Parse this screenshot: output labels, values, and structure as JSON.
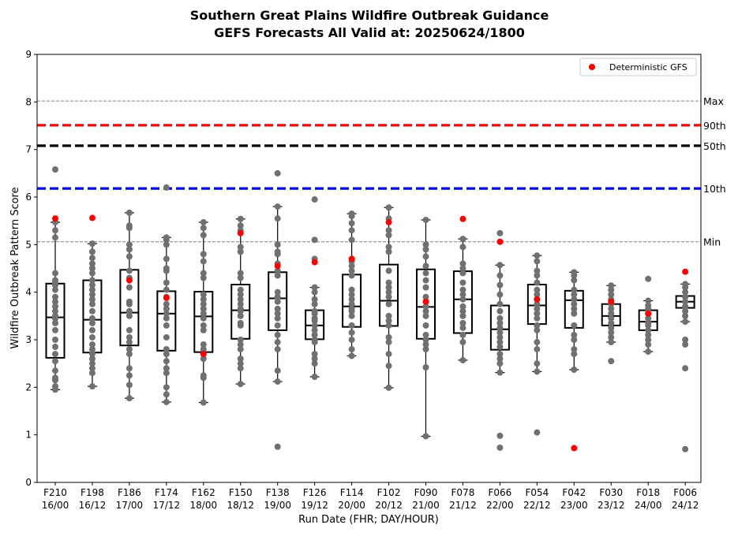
{
  "chart_data": {
    "type": "box",
    "title": "Southern Great Plains Wildfire Outbreak Guidance",
    "subtitle": "GEFS Forecasts All Valid at: 20250624/1800",
    "xlabel": "Run Date (FHR; DAY/HOUR)",
    "ylabel": "Wildfire Outbreak Pattern Score",
    "ylim": [
      0,
      9
    ],
    "yticks": [
      "0",
      "1",
      "2",
      "3",
      "4",
      "5",
      "6",
      "7",
      "8",
      "9"
    ],
    "grid": false,
    "legend": {
      "position": "top-right",
      "label": "Deterministic GFS",
      "color": "#ff0000"
    },
    "reference_lines": [
      {
        "label": "Max",
        "value": 8.02,
        "color": "#808080",
        "style": "dashed-thin"
      },
      {
        "label": "90th",
        "value": 7.51,
        "color": "#ff0000",
        "style": "dashed-thick"
      },
      {
        "label": "50th",
        "value": 7.08,
        "color": "#000000",
        "style": "dashed-thick"
      },
      {
        "label": "10th",
        "value": 6.18,
        "color": "#0000ff",
        "style": "dashed-thick"
      },
      {
        "label": "Min",
        "value": 5.06,
        "color": "#808080",
        "style": "dashed-thin"
      }
    ],
    "colors": {
      "members": "#707070",
      "deterministic": "#ff0000",
      "box": "#000000"
    },
    "categories": [
      {
        "fhr": "F210",
        "dayhour": "16/00",
        "q1": 2.62,
        "median": 3.47,
        "q3": 4.18,
        "whisker_low": 1.95,
        "whisker_high": 5.47,
        "det": 5.55,
        "members": [
          1.95,
          2.02,
          2.15,
          2.2,
          2.35,
          2.55,
          2.7,
          2.85,
          3.0,
          3.2,
          3.35,
          3.45,
          3.5,
          3.6,
          3.7,
          3.8,
          3.9,
          4.05,
          4.15,
          4.2,
          4.25,
          4.4,
          5.15,
          5.3,
          5.47,
          6.58
        ]
      },
      {
        "fhr": "F198",
        "dayhour": "16/12",
        "q1": 2.73,
        "median": 3.42,
        "q3": 4.25,
        "whisker_low": 2.02,
        "whisker_high": 5.02,
        "det": 5.56,
        "members": [
          2.02,
          2.3,
          2.4,
          2.5,
          2.6,
          2.7,
          2.8,
          2.9,
          3.05,
          3.2,
          3.35,
          3.45,
          3.6,
          3.75,
          3.85,
          3.95,
          4.05,
          4.15,
          4.25,
          4.4,
          4.5,
          4.6,
          4.72,
          4.85,
          5.02
        ]
      },
      {
        "fhr": "F186",
        "dayhour": "17/00",
        "q1": 2.88,
        "median": 3.57,
        "q3": 4.47,
        "whisker_low": 1.77,
        "whisker_high": 5.67,
        "det": 4.25,
        "members": [
          1.77,
          2.05,
          2.25,
          2.4,
          2.7,
          2.8,
          2.95,
          3.05,
          3.2,
          3.5,
          3.6,
          3.75,
          3.8,
          4.1,
          4.3,
          4.45,
          4.75,
          4.9,
          5.0,
          5.35,
          5.4,
          5.67
        ]
      },
      {
        "fhr": "F174",
        "dayhour": "17/12",
        "q1": 2.77,
        "median": 3.55,
        "q3": 4.02,
        "whisker_low": 1.69,
        "whisker_high": 5.15,
        "det": 3.88,
        "members": [
          1.69,
          1.85,
          2.0,
          2.3,
          2.4,
          2.55,
          2.7,
          2.8,
          3.05,
          3.3,
          3.45,
          3.55,
          3.65,
          3.75,
          3.9,
          4.05,
          4.2,
          4.45,
          4.5,
          4.7,
          5.0,
          5.1,
          5.15,
          6.2
        ]
      },
      {
        "fhr": "F162",
        "dayhour": "18/00",
        "q1": 2.74,
        "median": 3.49,
        "q3": 4.01,
        "whisker_low": 1.68,
        "whisker_high": 5.47,
        "det": 2.7,
        "members": [
          1.68,
          2.2,
          2.25,
          2.6,
          2.8,
          2.9,
          3.2,
          3.3,
          3.45,
          3.55,
          3.65,
          3.75,
          3.85,
          3.95,
          4.3,
          4.4,
          4.65,
          4.8,
          5.2,
          5.35,
          5.47
        ]
      },
      {
        "fhr": "F150",
        "dayhour": "18/12",
        "q1": 3.02,
        "median": 3.62,
        "q3": 4.16,
        "whisker_low": 2.07,
        "whisker_high": 5.54,
        "det": 5.24,
        "members": [
          2.07,
          2.4,
          2.5,
          2.6,
          2.8,
          2.9,
          3.0,
          3.3,
          3.35,
          3.5,
          3.6,
          3.65,
          3.75,
          3.85,
          3.95,
          4.05,
          4.3,
          4.4,
          4.85,
          4.95,
          5.3,
          5.4,
          5.54
        ]
      },
      {
        "fhr": "F138",
        "dayhour": "19/00",
        "q1": 3.2,
        "median": 3.87,
        "q3": 4.42,
        "whisker_low": 2.12,
        "whisker_high": 5.8,
        "det": 4.55,
        "members": [
          0.75,
          2.12,
          2.35,
          2.8,
          2.95,
          3.1,
          3.3,
          3.45,
          3.55,
          3.65,
          3.8,
          3.9,
          4.0,
          4.35,
          4.45,
          4.6,
          4.8,
          4.85,
          5.0,
          5.55,
          5.8,
          6.5
        ]
      },
      {
        "fhr": "F126",
        "dayhour": "19/12",
        "q1": 3.01,
        "median": 3.3,
        "q3": 3.62,
        "whisker_low": 2.22,
        "whisker_high": 4.1,
        "det": 4.63,
        "members": [
          2.22,
          2.5,
          2.6,
          2.7,
          2.95,
          3.0,
          3.1,
          3.2,
          3.3,
          3.4,
          3.45,
          3.55,
          3.6,
          3.75,
          3.85,
          4.0,
          4.1,
          4.7,
          5.1,
          5.95
        ]
      },
      {
        "fhr": "F114",
        "dayhour": "20/00",
        "q1": 3.27,
        "median": 3.7,
        "q3": 4.37,
        "whisker_low": 2.66,
        "whisker_high": 5.65,
        "det": 4.7,
        "members": [
          2.66,
          2.8,
          3.0,
          3.15,
          3.3,
          3.5,
          3.6,
          3.65,
          3.75,
          3.85,
          3.95,
          4.05,
          4.35,
          4.45,
          4.55,
          4.65,
          5.1,
          5.3,
          5.45,
          5.6,
          5.65
        ]
      },
      {
        "fhr": "F102",
        "dayhour": "20/12",
        "q1": 3.29,
        "median": 3.82,
        "q3": 4.58,
        "whisker_low": 1.99,
        "whisker_high": 5.78,
        "det": 5.47,
        "members": [
          1.99,
          2.45,
          2.7,
          2.95,
          3.05,
          3.3,
          3.4,
          3.5,
          3.75,
          3.9,
          4.0,
          4.1,
          4.2,
          4.45,
          4.85,
          4.95,
          5.2,
          5.3,
          5.55,
          5.78
        ]
      },
      {
        "fhr": "F090",
        "dayhour": "21/00",
        "q1": 3.02,
        "median": 3.69,
        "q3": 4.48,
        "whisker_low": 0.97,
        "whisker_high": 5.52,
        "det": 3.8,
        "members": [
          0.97,
          2.42,
          2.8,
          2.9,
          3.0,
          3.1,
          3.3,
          3.5,
          3.6,
          3.7,
          3.9,
          4.1,
          4.25,
          4.4,
          4.55,
          4.75,
          4.9,
          5.0,
          5.52
        ]
      },
      {
        "fhr": "F078",
        "dayhour": "21/12",
        "q1": 3.14,
        "median": 3.85,
        "q3": 4.44,
        "whisker_low": 2.57,
        "whisker_high": 5.12,
        "det": 5.54,
        "members": [
          2.57,
          2.95,
          3.1,
          3.25,
          3.35,
          3.5,
          3.6,
          3.7,
          3.85,
          3.95,
          4.05,
          4.2,
          4.4,
          4.5,
          4.6,
          4.95,
          5.12
        ]
      },
      {
        "fhr": "F066",
        "dayhour": "22/00",
        "q1": 2.79,
        "median": 3.22,
        "q3": 3.72,
        "whisker_low": 2.31,
        "whisker_high": 4.57,
        "det": 5.06,
        "members": [
          0.73,
          0.98,
          2.31,
          2.5,
          2.6,
          2.7,
          2.85,
          2.95,
          3.05,
          3.15,
          3.25,
          3.35,
          3.45,
          3.6,
          3.75,
          3.95,
          4.15,
          4.35,
          4.57,
          5.24
        ]
      },
      {
        "fhr": "F054",
        "dayhour": "22/12",
        "q1": 3.33,
        "median": 3.72,
        "q3": 4.16,
        "whisker_low": 2.33,
        "whisker_high": 4.77,
        "det": 3.85,
        "members": [
          1.05,
          2.33,
          2.5,
          2.8,
          2.95,
          3.2,
          3.3,
          3.45,
          3.55,
          3.65,
          3.75,
          3.85,
          3.95,
          4.05,
          4.2,
          4.35,
          4.45,
          4.65,
          4.77
        ]
      },
      {
        "fhr": "F042",
        "dayhour": "23/00",
        "q1": 3.25,
        "median": 3.83,
        "q3": 4.03,
        "whisker_low": 2.37,
        "whisker_high": 4.42,
        "det": 0.72,
        "members": [
          2.37,
          2.7,
          2.8,
          3.0,
          3.1,
          3.3,
          3.55,
          3.65,
          3.75,
          3.85,
          3.95,
          4.05,
          4.25,
          4.35,
          4.42
        ]
      },
      {
        "fhr": "F030",
        "dayhour": "23/12",
        "q1": 3.3,
        "median": 3.5,
        "q3": 3.75,
        "whisker_low": 2.95,
        "whisker_high": 4.14,
        "det": 3.8,
        "members": [
          2.55,
          2.95,
          3.05,
          3.15,
          3.25,
          3.35,
          3.45,
          3.55,
          3.65,
          3.75,
          3.85,
          3.95,
          4.05,
          4.14
        ]
      },
      {
        "fhr": "F018",
        "dayhour": "24/00",
        "q1": 3.2,
        "median": 3.38,
        "q3": 3.62,
        "whisker_low": 2.75,
        "whisker_high": 3.82,
        "det": 3.55,
        "members": [
          2.75,
          2.9,
          3.0,
          3.1,
          3.2,
          3.3,
          3.35,
          3.45,
          3.55,
          3.65,
          3.72,
          3.82,
          4.28
        ]
      },
      {
        "fhr": "F006",
        "dayhour": "24/12",
        "q1": 3.67,
        "median": 3.8,
        "q3": 3.92,
        "whisker_low": 3.38,
        "whisker_high": 4.17,
        "det": 4.43,
        "members": [
          0.7,
          2.4,
          2.9,
          3.0,
          3.38,
          3.5,
          3.6,
          3.7,
          3.8,
          3.9,
          4.0,
          4.1,
          4.17
        ]
      }
    ]
  }
}
